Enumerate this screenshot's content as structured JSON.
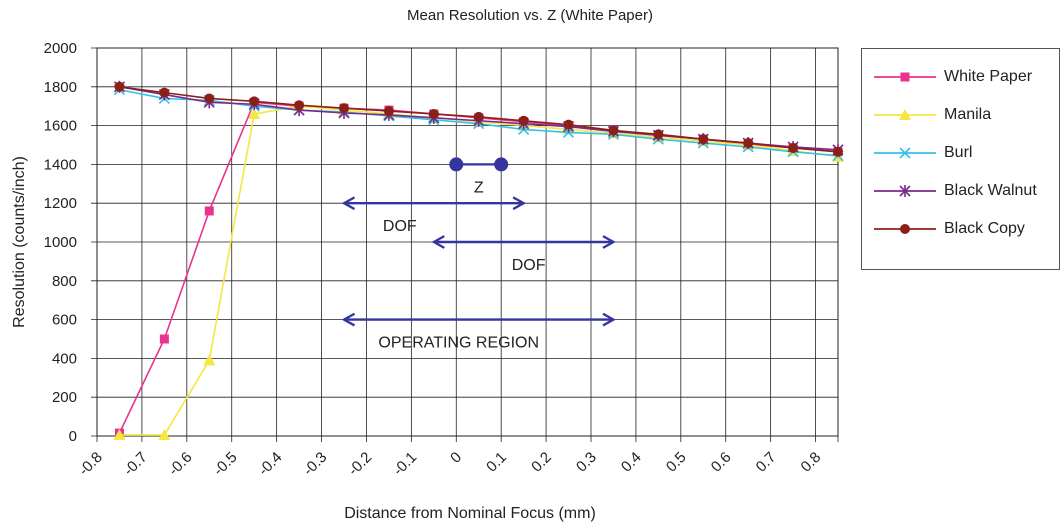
{
  "chart_data": {
    "type": "line",
    "title": "Mean Resolution vs. Z (White Paper)",
    "xlabel": "Distance from Nominal Focus (mm)",
    "ylabel": "Resolution (counts/inch)",
    "xlim": [
      -0.8,
      0.85
    ],
    "ylim": [
      0,
      2000
    ],
    "x_ticks": [
      "-0.8",
      "-0.7",
      "-0.6",
      "-0.5",
      "-0.4",
      "-0.3",
      "-0.2",
      "-0.1",
      "0",
      "0.1",
      "0.2",
      "0.3",
      "0.4",
      "0.5",
      "0.6",
      "0.7",
      "0.8"
    ],
    "y_ticks": [
      "0",
      "200",
      "400",
      "600",
      "800",
      "1000",
      "1200",
      "1400",
      "1600",
      "1800",
      "2000"
    ],
    "grid": true,
    "legend_position": "right",
    "series": [
      {
        "name": "White Paper",
        "color": "#e8338f",
        "marker": "square",
        "x": [
          -0.75,
          -0.65,
          -0.55,
          -0.45,
          -0.35,
          -0.25,
          -0.15,
          -0.05,
          0.05,
          0.15,
          0.25,
          0.35,
          0.45,
          0.55,
          0.65,
          0.75,
          0.85
        ],
        "y": [
          15,
          500,
          1160,
          1720,
          1700,
          1690,
          1680,
          1660,
          1640,
          1620,
          1600,
          1575,
          1550,
          1530,
          1505,
          1485,
          1465
        ]
      },
      {
        "name": "Manila",
        "color": "#f5e642",
        "marker": "triangle",
        "x": [
          -0.75,
          -0.65,
          -0.55,
          -0.45,
          -0.35,
          -0.25,
          -0.15,
          -0.05,
          0.05,
          0.15,
          0.25,
          0.35,
          0.45,
          0.55,
          0.65,
          0.75,
          0.85
        ],
        "y": [
          5,
          5,
          390,
          1660,
          1700,
          1680,
          1660,
          1640,
          1620,
          1600,
          1580,
          1560,
          1540,
          1520,
          1500,
          1470,
          1440
        ]
      },
      {
        "name": "Burl",
        "color": "#33c3e8",
        "marker": "x",
        "x": [
          -0.75,
          -0.65,
          -0.55,
          -0.45,
          -0.35,
          -0.25,
          -0.15,
          -0.05,
          0.05,
          0.15,
          0.25,
          0.35,
          0.45,
          0.55,
          0.65,
          0.75,
          0.85
        ],
        "y": [
          1785,
          1740,
          1730,
          1700,
          1680,
          1670,
          1650,
          1630,
          1610,
          1580,
          1565,
          1555,
          1530,
          1510,
          1490,
          1465,
          1445
        ]
      },
      {
        "name": "Black Walnut",
        "color": "#7a2a8a",
        "marker": "star",
        "x": [
          -0.75,
          -0.65,
          -0.55,
          -0.45,
          -0.35,
          -0.25,
          -0.15,
          -0.05,
          0.05,
          0.15,
          0.25,
          0.35,
          0.45,
          0.55,
          0.65,
          0.75,
          0.85
        ],
        "y": [
          1800,
          1760,
          1720,
          1710,
          1680,
          1665,
          1655,
          1640,
          1625,
          1610,
          1595,
          1570,
          1550,
          1530,
          1510,
          1490,
          1475
        ]
      },
      {
        "name": "Black Copy",
        "color": "#8b2018",
        "marker": "circle",
        "x": [
          -0.75,
          -0.65,
          -0.55,
          -0.45,
          -0.35,
          -0.25,
          -0.15,
          -0.05,
          0.05,
          0.15,
          0.25,
          0.35,
          0.45,
          0.55,
          0.65,
          0.75,
          0.85
        ],
        "y": [
          1800,
          1770,
          1740,
          1725,
          1705,
          1690,
          1675,
          1660,
          1645,
          1625,
          1605,
          1575,
          1555,
          1530,
          1510,
          1485,
          1465
        ]
      }
    ],
    "annotations": [
      {
        "type": "dumbbell",
        "label": "Z",
        "x": [
          0.0,
          0.1
        ],
        "y": 1400,
        "color": "#3535a0"
      },
      {
        "type": "double-arrow",
        "label": "DOF",
        "x": [
          -0.25,
          0.15
        ],
        "y": 1200,
        "color": "#3535a0"
      },
      {
        "type": "double-arrow",
        "label": "DOF",
        "x": [
          -0.05,
          0.35
        ],
        "y": 1000,
        "color": "#3535a0"
      },
      {
        "type": "double-arrow",
        "label": "OPERATING REGION",
        "x": [
          -0.25,
          0.35
        ],
        "y": 600,
        "color": "#3535a0"
      }
    ]
  }
}
